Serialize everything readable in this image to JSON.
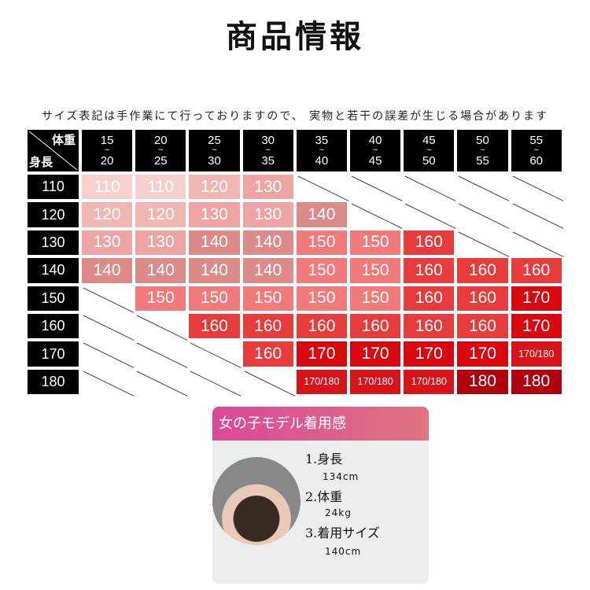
{
  "title": "商品情報",
  "note": "サイズ表記は手作業にて行っておりますので、 実物と若干の誤差が生じる場合があります",
  "table": {
    "corner_top": "体重",
    "corner_bottom": "身長",
    "weights": [
      [
        "15",
        "20"
      ],
      [
        "20",
        "25"
      ],
      [
        "25",
        "30"
      ],
      [
        "30",
        "35"
      ],
      [
        "35",
        "40"
      ],
      [
        "40",
        "45"
      ],
      [
        "45",
        "50"
      ],
      [
        "50",
        "55"
      ],
      [
        "55",
        "60"
      ]
    ],
    "tilde": "~",
    "rows": [
      {
        "height": "110",
        "sizes": [
          "110",
          "110",
          "120",
          "130",
          null,
          null,
          null,
          null,
          null
        ]
      },
      {
        "height": "120",
        "sizes": [
          "120",
          "120",
          "130",
          "130",
          "140",
          null,
          null,
          null,
          null
        ]
      },
      {
        "height": "130",
        "sizes": [
          "130",
          "130",
          "140",
          "140",
          "150",
          "150",
          "160",
          null,
          null
        ]
      },
      {
        "height": "140",
        "sizes": [
          "140",
          "140",
          "140",
          "140",
          "150",
          "150",
          "160",
          "160",
          "160"
        ]
      },
      {
        "height": "150",
        "sizes": [
          null,
          "150",
          "150",
          "150",
          "150",
          "150",
          "160",
          "160",
          "170"
        ]
      },
      {
        "height": "160",
        "sizes": [
          null,
          null,
          "160",
          "160",
          "160",
          "160",
          "160",
          "160",
          "170"
        ]
      },
      {
        "height": "170",
        "sizes": [
          null,
          null,
          null,
          "160",
          "170",
          "170",
          "170",
          "170",
          "170/180"
        ]
      },
      {
        "height": "180",
        "sizes": [
          null,
          null,
          null,
          null,
          "170/180",
          "170/180",
          "170/180",
          "180",
          "180"
        ]
      }
    ],
    "colors": {
      "110": "#f5d0cd",
      "120": "#f1b5b2",
      "130": "#eea4a2",
      "140": "#dc8b89",
      "150": "#f27a7a",
      "160": "#e83c3c",
      "170": "#d8080e",
      "170/180": "#d8141a",
      "180": "#b0000f"
    }
  },
  "model": {
    "header": "女の子モデル着用感",
    "items": [
      {
        "label": "1.身長",
        "value": "134cm"
      },
      {
        "label": "2.体重",
        "value": "24kg"
      },
      {
        "label": "3.着用サイズ",
        "value": "140cm"
      }
    ]
  }
}
